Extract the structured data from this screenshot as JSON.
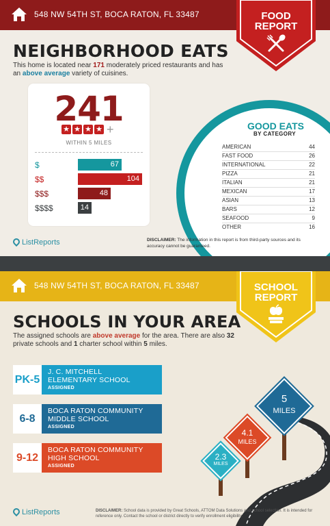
{
  "food_section": {
    "address": "548 NW 54TH ST, BOCA RATON, FL 33487",
    "badge_line1": "FOOD",
    "badge_line2": "REPORT",
    "title": "NEIGHBORHOOD EATS",
    "intro_pre": "This home is located near ",
    "intro_count": "171",
    "intro_mid": " moderately priced restaurants and has an ",
    "intro_emph": "above average",
    "intro_post": " variety of cuisines.",
    "big_number": "241",
    "stars_filled": 4,
    "stars_plus": "+",
    "within_label": "WITHIN 5 MILES",
    "price_tiers": [
      {
        "label": "$",
        "value": "67",
        "color": "#15979e"
      },
      {
        "label": "$$",
        "value": "104",
        "color": "#c42020"
      },
      {
        "label": "$$$",
        "value": "48",
        "color": "#8e1b1b"
      },
      {
        "label": "$$$$",
        "value": "14",
        "color": "#3b3f41"
      }
    ],
    "good_eats_title": "GOOD EATS",
    "by_category": "BY CATEGORY",
    "categories": [
      {
        "name": "AMERICAN",
        "value": "44"
      },
      {
        "name": "FAST FOOD",
        "value": "26"
      },
      {
        "name": "INTERNATIONAL",
        "value": "22"
      },
      {
        "name": "PIZZA",
        "value": "21"
      },
      {
        "name": "ITALIAN",
        "value": "21"
      },
      {
        "name": "MEXICAN",
        "value": "17"
      },
      {
        "name": "ASIAN",
        "value": "13"
      },
      {
        "name": "BARS",
        "value": "12"
      },
      {
        "name": "SEAFOOD",
        "value": "9"
      },
      {
        "name": "OTHER",
        "value": "16"
      }
    ],
    "logo_text": "ListReports",
    "disclaimer_label": "DISCLAIMER:",
    "disclaimer_text": " The information in this report is from third-party sources and its accuracy cannot be guaranteed."
  },
  "school_section": {
    "address": "548 NW 54TH ST, BOCA RATON, FL 33487",
    "badge_line1": "SCHOOL",
    "badge_line2": "REPORT",
    "title": "SCHOOLS IN YOUR AREA",
    "intro_pre": "The assigned schools are ",
    "intro_emph": "above average",
    "intro_mid1": " for the area. There are also ",
    "intro_private": "32",
    "intro_mid2": " private schools and ",
    "intro_charter": "1",
    "intro_mid3": " charter school within ",
    "intro_miles": "5",
    "intro_post": " miles.",
    "schools": [
      {
        "grade": "PK-5",
        "line1": "J. C. MITCHELL",
        "line2": "ELEMENTARY SCHOOL",
        "status": "ASSIGNED",
        "color": "#1a9fc9"
      },
      {
        "grade": "6-8",
        "line1": "BOCA RATON COMMUNITY",
        "line2": "MIDDLE SCHOOL",
        "status": "ASSIGNED",
        "color": "#1f6a96"
      },
      {
        "grade": "9-12",
        "line1": "BOCA RATON COMMUNITY",
        "line2": "HIGH SCHOOL",
        "status": "ASSIGNED",
        "color": "#dc4a27"
      }
    ],
    "road_signs": [
      {
        "value": "2.3",
        "unit": "MILES",
        "color": "#2bb0c4"
      },
      {
        "value": "4.1",
        "unit": "MILES",
        "color": "#dc4a27"
      },
      {
        "value": "5",
        "unit": "MILES",
        "color": "#1f6a96"
      }
    ],
    "logo_text": "ListReports",
    "disclaimer_label": "DISCLAIMER:",
    "disclaimer_text": " School data is provided by Great Schools, ATTOM Data Solutions and school selection. It is intended for reference only. Contact the school or district directly to verify enrollment eligibility."
  }
}
